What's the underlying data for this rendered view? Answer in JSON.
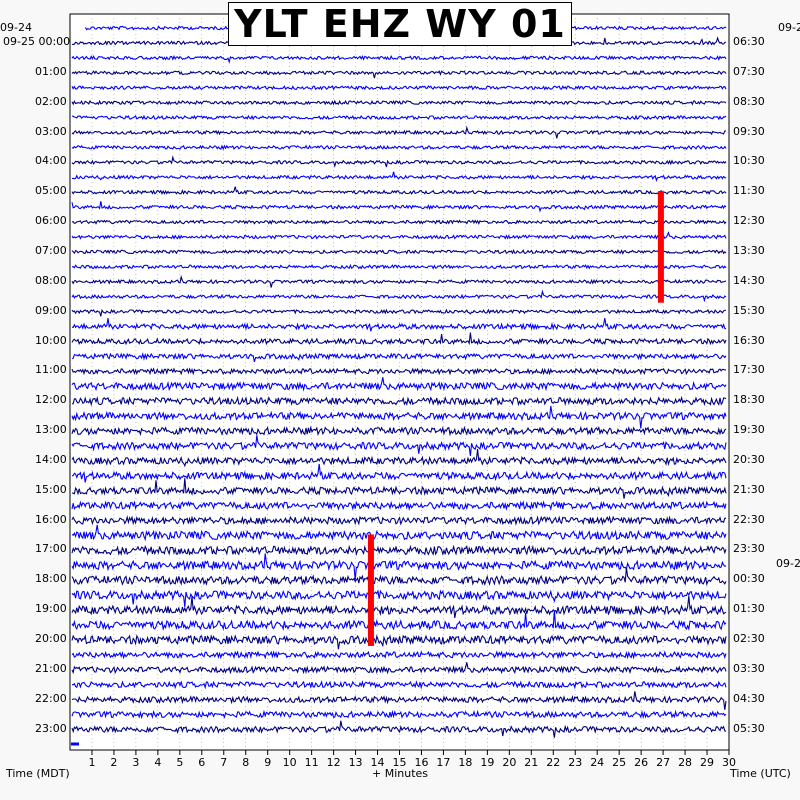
{
  "chart_data": {
    "type": "line",
    "title": "YLT EHZ WY 01",
    "xlabel": "+ Minutes",
    "left_axis_label": "Time (MDT)",
    "right_axis_label": "Time (UTC)",
    "xlim": [
      0,
      30
    ],
    "x_ticks": [
      "1",
      "2",
      "3",
      "4",
      "5",
      "6",
      "7",
      "8",
      "9",
      "10",
      "11",
      "12",
      "13",
      "14",
      "15",
      "16",
      "17",
      "18",
      "19",
      "20",
      "21",
      "22",
      "23",
      "24",
      "25",
      "26",
      "27",
      "28",
      "29",
      "30"
    ],
    "left_top_date": "09-24",
    "left_date_prefix": "09-25",
    "right_top_date": "09-2",
    "right_mid_date": "09-2",
    "left_hour_labels": [
      "00:00",
      "01:00",
      "02:00",
      "03:00",
      "04:00",
      "05:00",
      "06:00",
      "07:00",
      "08:00",
      "09:00",
      "10:00",
      "11:00",
      "12:00",
      "13:00",
      "14:00",
      "15:00",
      "16:00",
      "17:00",
      "18:00",
      "19:00",
      "20:00",
      "21:00",
      "22:00",
      "23:00"
    ],
    "right_hour_labels": [
      "06:30",
      "07:30",
      "08:30",
      "09:30",
      "10:30",
      "11:30",
      "12:30",
      "13:30",
      "14:30",
      "15:30",
      "16:30",
      "17:30",
      "18:30",
      "19:30",
      "20:30",
      "21:30",
      "22:30",
      "23:30",
      "00:30",
      "01:30",
      "02:30",
      "03:30",
      "04:30",
      "05:30"
    ],
    "trace_minutes_per_line": 30,
    "trace_color_cycle": [
      "#000080",
      "#000000",
      "#ff0000",
      "#0000ff"
    ],
    "trace_colors_shown": [
      "#000080",
      "#0000ff"
    ],
    "event_marker_color": "#ff0000",
    "event_markers": [
      {
        "start_hour": 5.5,
        "end_hour": 8.8,
        "minute": 26.9
      },
      {
        "start_hour": 17.0,
        "end_hour": 20.3,
        "minute": 13.7
      }
    ],
    "grid": true
  }
}
